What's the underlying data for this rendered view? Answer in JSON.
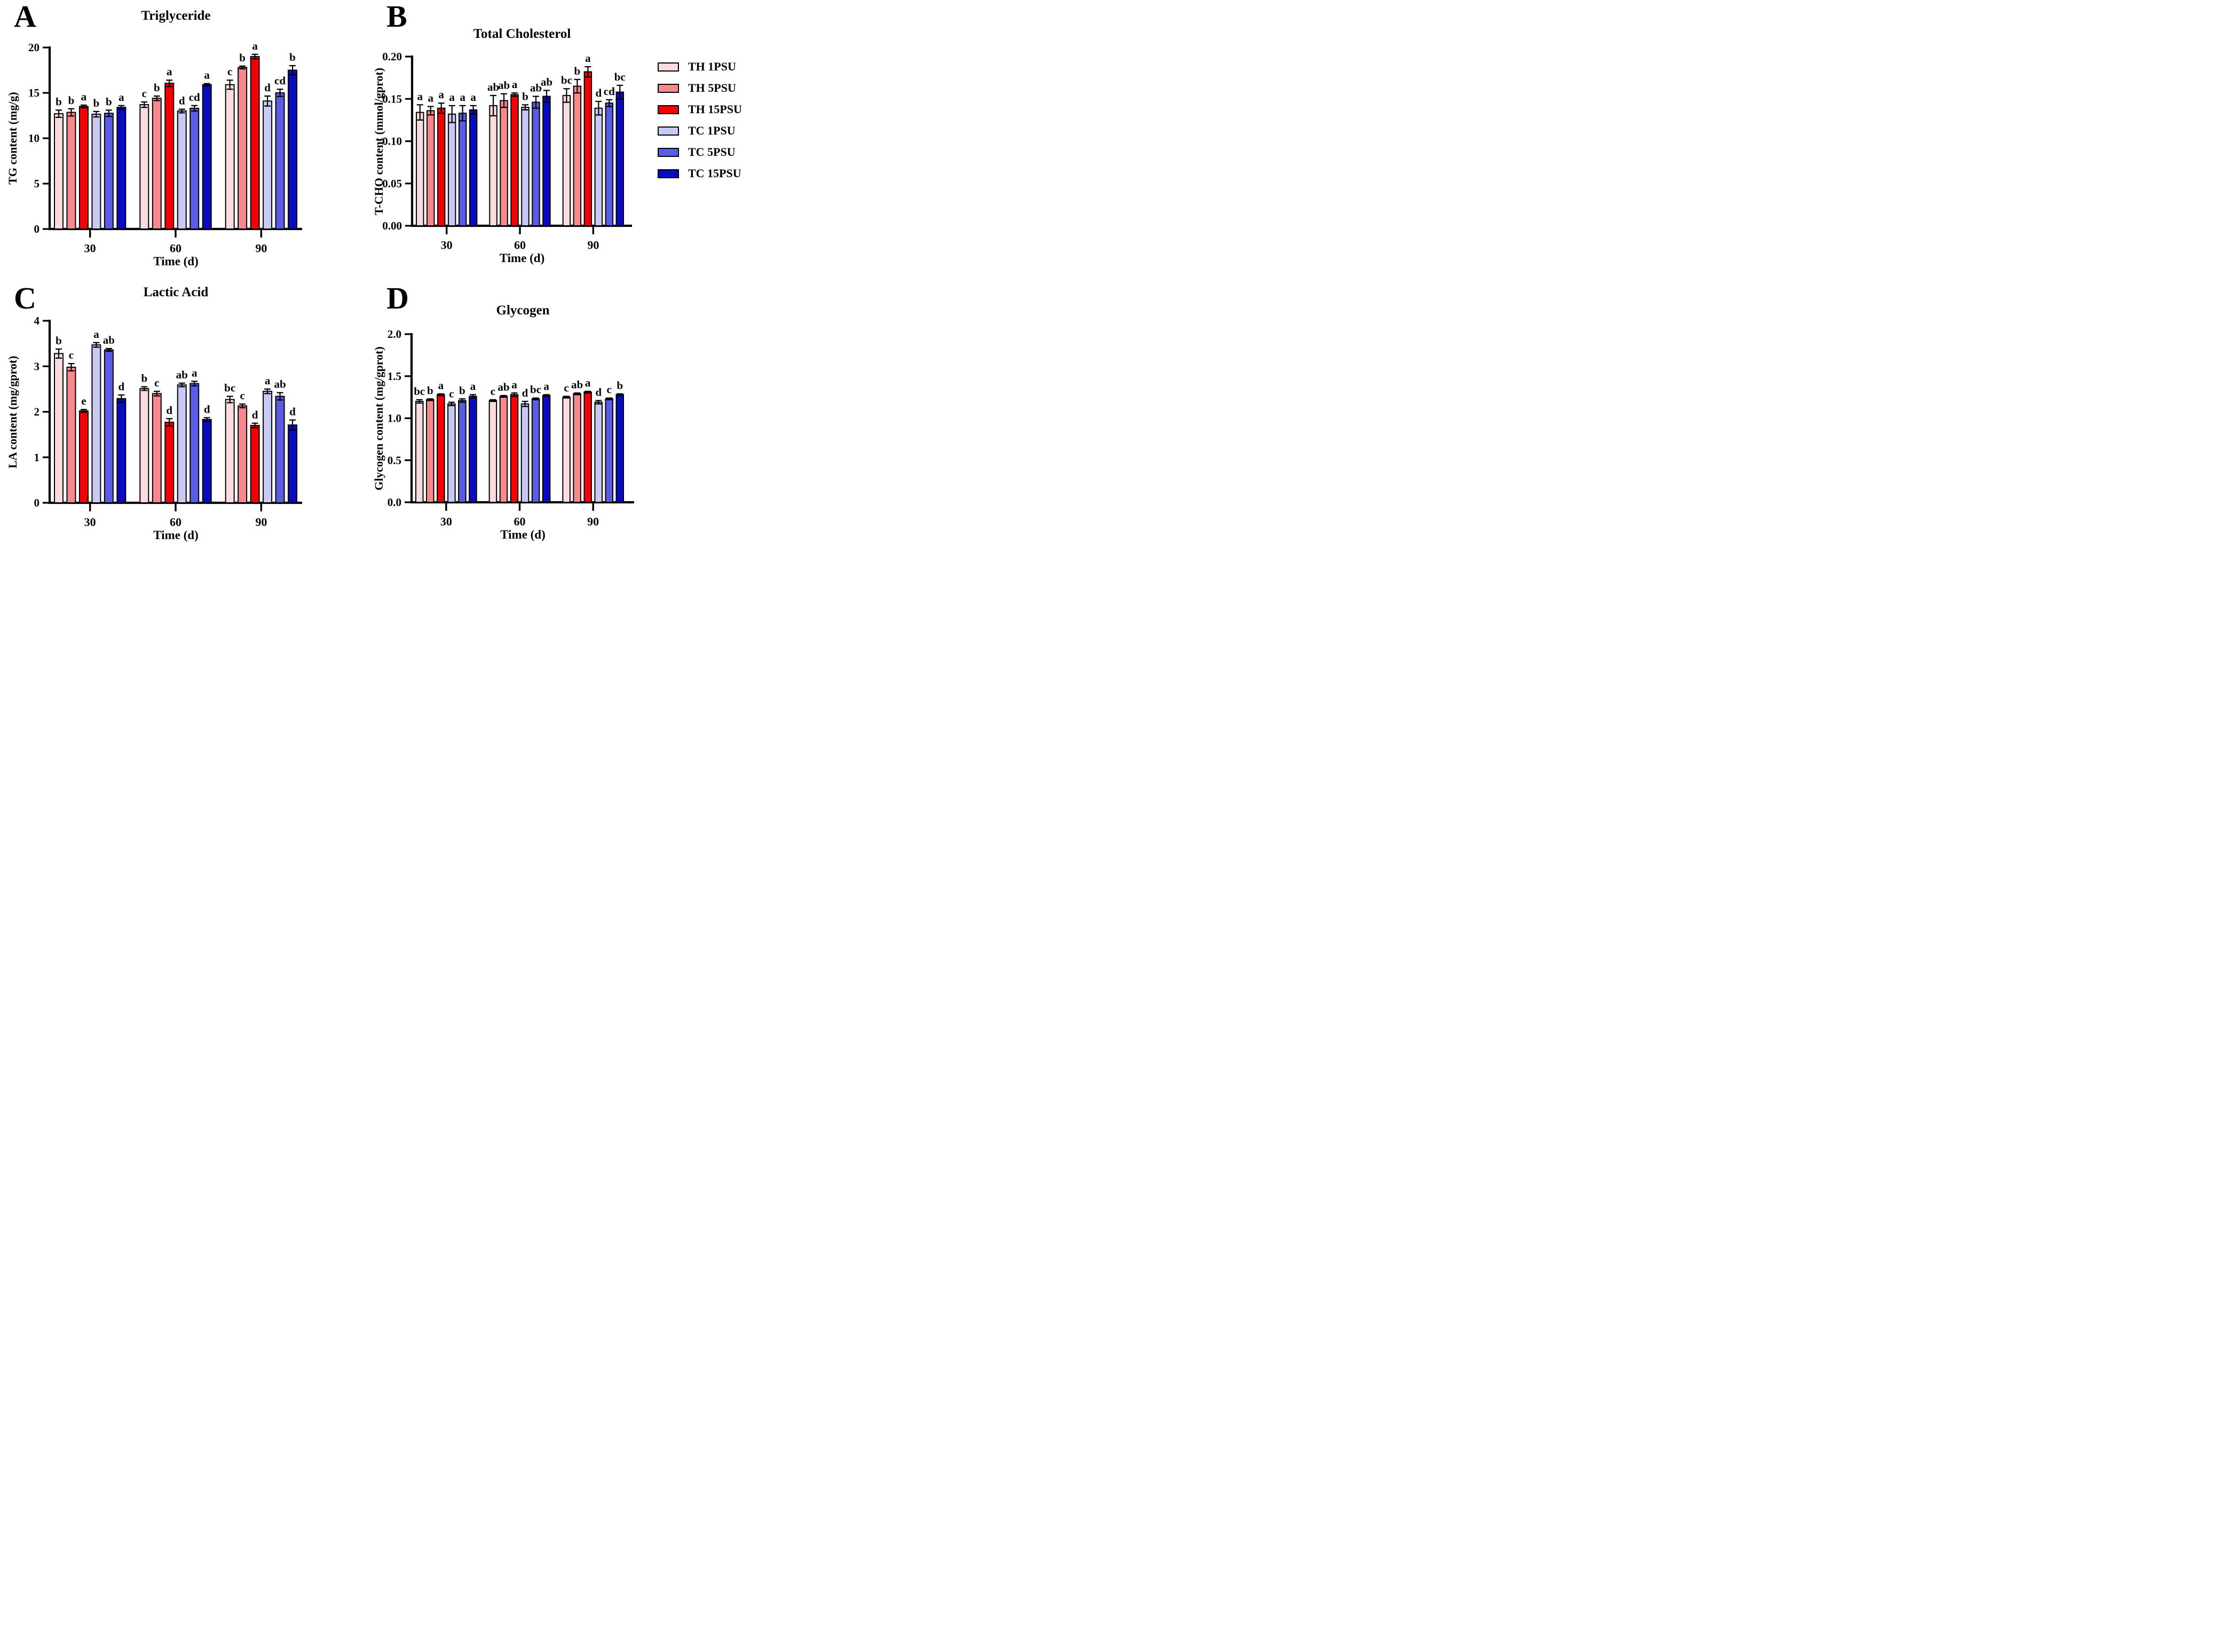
{
  "figure": {
    "legend": {
      "items": [
        {
          "label": "TH 1PSU",
          "color": "#FADCDE"
        },
        {
          "label": "TH 5PSU",
          "color": "#F8888B"
        },
        {
          "label": "TH 15PSU",
          "color": "#F20202"
        },
        {
          "label": "TC 1PSU",
          "color": "#C6CAF5"
        },
        {
          "label": "TC 5PSU",
          "color": "#5A5CE5"
        },
        {
          "label": "TC 15PSU",
          "color": "#0A0ABE"
        }
      ]
    }
  },
  "chart_data": [
    {
      "id": "A",
      "panel_letter": "A",
      "type": "bar",
      "title": "Triglyceride",
      "xlabel": "Time (d)",
      "ylabel": "TG content (mg/g)",
      "ylim": [
        0,
        20
      ],
      "yticks": [
        0,
        5,
        10,
        15,
        20
      ],
      "ytick_labels": [
        "0",
        "5",
        "10",
        "15",
        "20"
      ],
      "categories": [
        "30",
        "60",
        "90"
      ],
      "legend_position": "none",
      "grid": false,
      "series": [
        {
          "name": "TH 1PSU",
          "color": "#FADCDE",
          "values": [
            12.7,
            13.7,
            15.9
          ],
          "errors": [
            0.4,
            0.3,
            0.5
          ],
          "sig_letters": [
            "b",
            "c",
            "c"
          ]
        },
        {
          "name": "TH 5PSU",
          "color": "#F8888B",
          "values": [
            12.85,
            14.4,
            17.8
          ],
          "errors": [
            0.4,
            0.25,
            0.15
          ],
          "sig_letters": [
            "b",
            "b",
            "b"
          ]
        },
        {
          "name": "TH 15PSU",
          "color": "#F20202",
          "values": [
            13.5,
            16.05,
            19.0
          ],
          "errors": [
            0.15,
            0.35,
            0.25
          ],
          "sig_letters": [
            "a",
            "a",
            "a"
          ]
        },
        {
          "name": "TC 1PSU",
          "color": "#C6CAF5",
          "values": [
            12.65,
            13.0,
            14.1
          ],
          "errors": [
            0.3,
            0.2,
            0.55
          ],
          "sig_letters": [
            "b",
            "d",
            "d"
          ]
        },
        {
          "name": "TC 5PSU",
          "color": "#5A5CE5",
          "values": [
            12.75,
            13.3,
            15.0
          ],
          "errors": [
            0.35,
            0.3,
            0.4
          ],
          "sig_letters": [
            "b",
            "cd",
            "cd"
          ]
        },
        {
          "name": "TC 15PSU",
          "color": "#0A0ABE",
          "values": [
            13.4,
            15.9,
            17.5
          ],
          "errors": [
            0.2,
            0.12,
            0.5
          ],
          "sig_letters": [
            "a",
            "a",
            "b"
          ]
        }
      ]
    },
    {
      "id": "B",
      "panel_letter": "B",
      "type": "bar",
      "title": "Total Cholesterol",
      "xlabel": "Time (d)",
      "ylabel": "T-CHO content (mmol/gprot)",
      "ylim": [
        0,
        0.2
      ],
      "yticks": [
        0,
        0.05,
        0.1,
        0.15,
        0.2
      ],
      "ytick_labels": [
        "0.00",
        "0.05",
        "0.10",
        "0.15",
        "0.20"
      ],
      "categories": [
        "30",
        "60",
        "90"
      ],
      "legend_position": "right",
      "grid": false,
      "series": [
        {
          "name": "TH 1PSU",
          "color": "#FADCDE",
          "values": [
            0.134,
            0.142,
            0.154
          ],
          "errors": [
            0.009,
            0.012,
            0.008
          ],
          "sig_letters": [
            "a",
            "ab",
            "bc"
          ]
        },
        {
          "name": "TH 5PSU",
          "color": "#F8888B",
          "values": [
            0.136,
            0.148,
            0.165
          ],
          "errors": [
            0.005,
            0.008,
            0.008
          ],
          "sig_letters": [
            "a",
            "ab",
            "b"
          ]
        },
        {
          "name": "TH 15PSU",
          "color": "#F20202",
          "values": [
            0.139,
            0.155,
            0.182
          ],
          "errors": [
            0.006,
            0.002,
            0.006
          ],
          "sig_letters": [
            "a",
            "a",
            "a"
          ]
        },
        {
          "name": "TC 1PSU",
          "color": "#C6CAF5",
          "values": [
            0.132,
            0.14,
            0.139
          ],
          "errors": [
            0.01,
            0.003,
            0.008
          ],
          "sig_letters": [
            "a",
            "b",
            "d"
          ]
        },
        {
          "name": "TC 5PSU",
          "color": "#5A5CE5",
          "values": [
            0.133,
            0.146,
            0.145
          ],
          "errors": [
            0.009,
            0.007,
            0.004
          ],
          "sig_letters": [
            "a",
            "ab",
            "cd"
          ]
        },
        {
          "name": "TC 15PSU",
          "color": "#0A0ABE",
          "values": [
            0.137,
            0.153,
            0.158
          ],
          "errors": [
            0.005,
            0.007,
            0.008
          ],
          "sig_letters": [
            "a",
            "ab",
            "bc"
          ]
        }
      ]
    },
    {
      "id": "C",
      "panel_letter": "C",
      "type": "bar",
      "title": "Lactic Acid",
      "xlabel": "Time (d)",
      "ylabel": "LA content (mg/gprot)",
      "ylim": [
        0,
        4
      ],
      "yticks": [
        0,
        1,
        2,
        3,
        4
      ],
      "ytick_labels": [
        "0",
        "1",
        "2",
        "3",
        "4"
      ],
      "categories": [
        "30",
        "60",
        "90"
      ],
      "legend_position": "none",
      "grid": false,
      "series": [
        {
          "name": "TH 1PSU",
          "color": "#FADCDE",
          "values": [
            3.28,
            2.51,
            2.27
          ],
          "errors": [
            0.1,
            0.04,
            0.07
          ],
          "sig_letters": [
            "b",
            "b",
            "bc"
          ]
        },
        {
          "name": "TH 5PSU",
          "color": "#F8888B",
          "values": [
            2.98,
            2.4,
            2.13
          ],
          "errors": [
            0.08,
            0.05,
            0.04
          ],
          "sig_letters": [
            "c",
            "c",
            "c"
          ]
        },
        {
          "name": "TH 15PSU",
          "color": "#F20202",
          "values": [
            2.02,
            1.77,
            1.7
          ],
          "errors": [
            0.03,
            0.08,
            0.05
          ],
          "sig_letters": [
            "e",
            "d",
            "d"
          ]
        },
        {
          "name": "TC 1PSU",
          "color": "#C6CAF5",
          "values": [
            3.47,
            2.59,
            2.45
          ],
          "errors": [
            0.05,
            0.04,
            0.05
          ],
          "sig_letters": [
            "a",
            "ab",
            "a"
          ]
        },
        {
          "name": "TC 5PSU",
          "color": "#5A5CE5",
          "values": [
            3.36,
            2.62,
            2.34
          ],
          "errors": [
            0.03,
            0.05,
            0.08
          ],
          "sig_letters": [
            "ab",
            "a",
            "ab"
          ]
        },
        {
          "name": "TC 15PSU",
          "color": "#0A0ABE",
          "values": [
            2.29,
            1.83,
            1.71
          ],
          "errors": [
            0.08,
            0.04,
            0.11
          ],
          "sig_letters": [
            "d",
            "d",
            "d"
          ]
        }
      ]
    },
    {
      "id": "D",
      "panel_letter": "D",
      "type": "bar",
      "title": "Glycogen",
      "xlabel": "Time (d)",
      "ylabel": "Glycogen content (mg/gprot)",
      "ylim": [
        0,
        2.0
      ],
      "yticks": [
        0,
        0.5,
        1.0,
        1.5,
        2.0
      ],
      "ytick_labels": [
        "0.0",
        "0.5",
        "1.0",
        "1.5",
        "2.0"
      ],
      "categories": [
        "30",
        "60",
        "90"
      ],
      "legend_position": "none",
      "grid": false,
      "series": [
        {
          "name": "TH 1PSU",
          "color": "#FADCDE",
          "values": [
            1.2,
            1.21,
            1.25
          ],
          "errors": [
            0.02,
            0.01,
            0.01
          ],
          "sig_letters": [
            "bc",
            "c",
            "c"
          ]
        },
        {
          "name": "TH 5PSU",
          "color": "#F8888B",
          "values": [
            1.22,
            1.26,
            1.29
          ],
          "errors": [
            0.01,
            0.01,
            0.01
          ],
          "sig_letters": [
            "b",
            "ab",
            "ab"
          ]
        },
        {
          "name": "TH 15PSU",
          "color": "#F20202",
          "values": [
            1.28,
            1.28,
            1.31
          ],
          "errors": [
            0.01,
            0.02,
            0.01
          ],
          "sig_letters": [
            "a",
            "a",
            "a"
          ]
        },
        {
          "name": "TC 1PSU",
          "color": "#C6CAF5",
          "values": [
            1.17,
            1.17,
            1.19
          ],
          "errors": [
            0.02,
            0.03,
            0.02
          ],
          "sig_letters": [
            "c",
            "d",
            "d"
          ]
        },
        {
          "name": "TC 5PSU",
          "color": "#5A5CE5",
          "values": [
            1.21,
            1.23,
            1.23
          ],
          "errors": [
            0.02,
            0.01,
            0.01
          ],
          "sig_letters": [
            "b",
            "bc",
            "c"
          ]
        },
        {
          "name": "TC 15PSU",
          "color": "#0A0ABE",
          "values": [
            1.26,
            1.27,
            1.28
          ],
          "errors": [
            0.02,
            0.01,
            0.01
          ],
          "sig_letters": [
            "a",
            "a",
            "b"
          ]
        }
      ]
    }
  ]
}
